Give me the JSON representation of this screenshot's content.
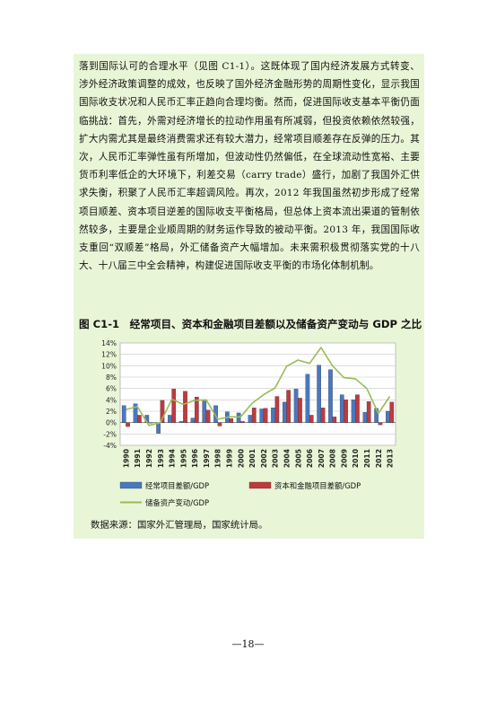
{
  "body_text": "落到国际认可的合理水平（见图 C1-1）。这既体现了国内经济发展方式转变、涉外经济政策调整的成效，也反映了国外经济金融形势的周期性变化，显示我国国际收支状况和人民币汇率正趋向合理均衡。然而，促进国际收支基本平衡仍面临挑战：首先，外需对经济增长的拉动作用虽有所减弱，但投资依赖依然较强，扩大内需尤其是最终消费需求还有较大潜力，经常项目顺差存在反弹的压力。其次，人民币汇率弹性虽有所增加，但波动性仍然偏低，在全球流动性宽裕、主要货币利率低企的大环境下，利差交易（carry trade）盛行，加剧了我国外汇供求失衡，积聚了人民币汇率超调风险。再次，2012 年我国虽然初步形成了经常项目顺差、资本项目逆差的国际收支平衡格局，但总体上资本流出渠道的管制依然较多，主要是企业顺周期的财务运作导致的被动平衡。2013 年，我国国际收支重回“双顺差”格局，外汇储备资产大幅增加。未来需积极贯彻落实党的十八大、十八届三中全会精神，构建促进国际收支平衡的市场化体制机制。",
  "figure_title": "图 C1-1　经常项目、资本和金融项目差额以及储备资产变动与 GDP 之比",
  "source_note": "数据来源：国家外汇管理局，国家统计局。",
  "page_number": "—18—",
  "colors": {
    "panel": "#e9f5d7",
    "current": "#4a78bf",
    "capital": "#c0393d",
    "reserve": "#9bbb59"
  },
  "chart_data": {
    "type": "bar",
    "title": "",
    "x": [
      "1990",
      "1991",
      "1992",
      "1993",
      "1994",
      "1995",
      "1996",
      "1997",
      "1998",
      "1999",
      "2000",
      "2001",
      "2002",
      "2003",
      "2004",
      "2005",
      "2006",
      "2007",
      "2008",
      "2009",
      "2010",
      "2011",
      "2012",
      "2013"
    ],
    "ylim": [
      -4,
      14
    ],
    "yticks": [
      "-4%",
      "-2%",
      "0%",
      "2%",
      "4%",
      "6%",
      "8%",
      "10%",
      "12%",
      "14%"
    ],
    "yticks_values": [
      -4,
      -2,
      0,
      2,
      4,
      6,
      8,
      10,
      12,
      14
    ],
    "grid": true,
    "legend_position": "bottom",
    "series": [
      {
        "name": "经常项目差额/GDP",
        "kind": "bar",
        "values": [
          3.0,
          3.3,
          1.3,
          -1.9,
          1.3,
          0.2,
          0.8,
          3.8,
          3.0,
          1.9,
          1.7,
          1.3,
          2.4,
          2.6,
          3.6,
          5.9,
          8.5,
          10.1,
          9.3,
          4.9,
          4.0,
          1.8,
          2.5,
          2.0
        ]
      },
      {
        "name": "资本和金融项目差额/GDP",
        "kind": "bar",
        "values": [
          -0.7,
          1.3,
          -0.1,
          3.9,
          5.9,
          5.5,
          4.5,
          2.2,
          -0.6,
          0.7,
          0.2,
          2.6,
          2.5,
          4.6,
          5.7,
          4.3,
          1.3,
          2.6,
          1.0,
          4.0,
          4.9,
          3.7,
          -0.4,
          3.6
        ]
      },
      {
        "name": "储备资产变动/GDP",
        "kind": "line",
        "values": [
          2.3,
          2.8,
          -0.5,
          0.0,
          4.1,
          3.2,
          3.9,
          4.0,
          0.6,
          1.0,
          1.0,
          3.4,
          4.9,
          6.1,
          9.9,
          11.0,
          10.4,
          13.2,
          10.0,
          7.9,
          7.7,
          6.0,
          1.6,
          4.6
        ]
      }
    ]
  }
}
